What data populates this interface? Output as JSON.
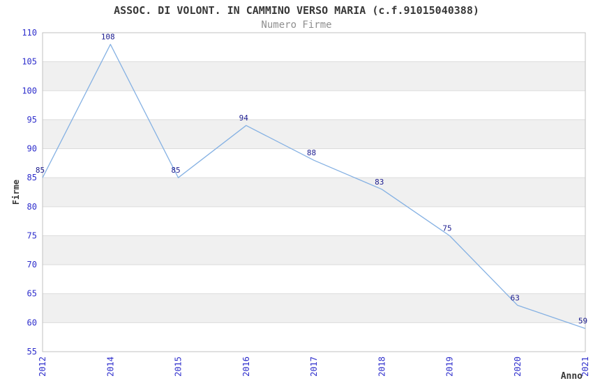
{
  "header": {
    "title": "ASSOC. DI VOLONT. IN CAMMINO VERSO MARIA (c.f.91015040388)",
    "subtitle": "Numero Firme"
  },
  "chart_data": {
    "type": "line",
    "title": "ASSOC. DI VOLONT. IN CAMMINO VERSO MARIA (c.f.91015040388)",
    "subtitle": "Numero Firme",
    "categories": [
      "2012",
      "2014",
      "2015",
      "2016",
      "2017",
      "2018",
      "2019",
      "2020",
      "2021"
    ],
    "values": [
      85,
      108,
      85,
      94,
      88,
      83,
      75,
      63,
      59
    ],
    "data_labels": [
      "85",
      "108",
      "85",
      "94",
      "88",
      "83",
      "75",
      "63",
      "59"
    ],
    "xlabel": "Anno",
    "ylabel": "Firme",
    "ylim": [
      55,
      110
    ],
    "ytick_step": 5,
    "ytick_labels": [
      "110",
      "105",
      "100",
      "95",
      "90",
      "85",
      "80",
      "75",
      "70",
      "65",
      "60",
      "55"
    ],
    "grid": "horizontal-bands",
    "legend": "none",
    "colors": {
      "line": "#85b1e3",
      "data_label": "#1c1c8f",
      "tick_label": "#2e2ecc",
      "band": "#f0f0f0",
      "gridline": "#dcdcdc",
      "plot_border": "#c0c0c0",
      "title": "#383838",
      "subtitle": "#8f8f8f",
      "axis_label": "#383838",
      "plot_background": "#ffffff"
    }
  }
}
